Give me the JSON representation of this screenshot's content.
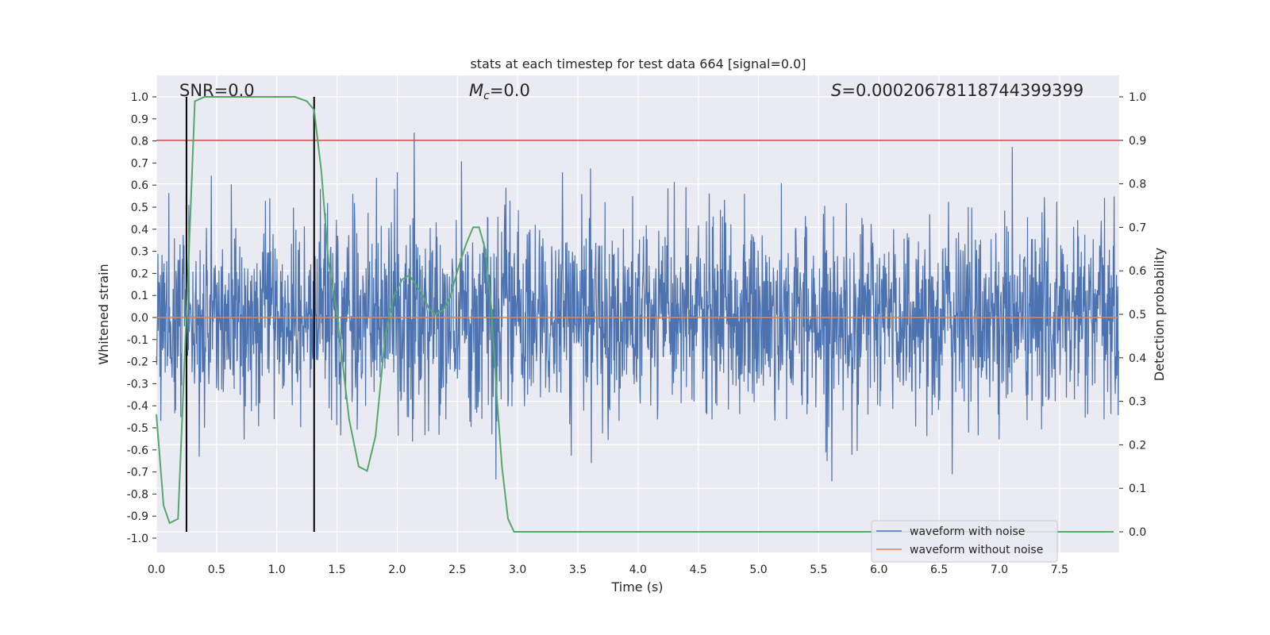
{
  "chart_data": {
    "type": "line",
    "title": "stats at each timestep for test data 664 [signal=0.0]",
    "xlabel": "Time (s)",
    "ylabel_left": "Whitened strain",
    "ylabel_right": "Detection probability",
    "xlim": [
      0.0,
      8.0
    ],
    "ylim_left": [
      -1.07,
      1.1
    ],
    "ylim_right": [
      -0.05,
      1.05
    ],
    "x_ticks": [
      "0.0",
      "0.5",
      "1.0",
      "1.5",
      "2.0",
      "2.5",
      "3.0",
      "3.5",
      "4.0",
      "4.5",
      "5.0",
      "5.5",
      "6.0",
      "6.5",
      "7.0",
      "7.5"
    ],
    "y_ticks_left": [
      "1.0",
      "0.9",
      "0.8",
      "0.7",
      "0.6",
      "0.5",
      "0.4",
      "0.3",
      "0.2",
      "0.1",
      "0.0",
      "-0.1",
      "-0.2",
      "-0.3",
      "-0.4",
      "-0.5",
      "-0.6",
      "-0.7",
      "-0.8",
      "-0.9",
      "-1.0"
    ],
    "y_ticks_right": [
      "1.0",
      "0.9",
      "0.8",
      "0.7",
      "0.6",
      "0.5",
      "0.4",
      "0.3",
      "0.2",
      "0.1",
      "0.0"
    ],
    "grid": true,
    "legend_position": "lower-right",
    "annotations": {
      "snr": "SNR=0.0",
      "mc_symbol": "M",
      "mc_sub": "c",
      "mc_value": "=0.0",
      "s_symbol": "S",
      "s_value": "=0.00020678118744399399"
    },
    "threshold_line": {
      "axis": "right",
      "y": 0.9,
      "color": "#c44e52"
    },
    "vertical_markers": {
      "x": [
        0.25,
        1.31
      ],
      "color": "#000000"
    },
    "series": [
      {
        "name": "waveform with noise",
        "axis": "left",
        "color": "#4c72b0",
        "style": "dense noise, approx. amplitude ±0.4 with excursions to ±1.0"
      },
      {
        "name": "waveform without noise",
        "axis": "left",
        "color": "#dd8452",
        "constant_value": 0.0
      },
      {
        "name": "detection probability",
        "axis": "right",
        "color": "#55a868",
        "x": [
          0.0,
          0.06,
          0.11,
          0.18,
          0.25,
          0.32,
          0.4,
          0.6,
          0.8,
          1.0,
          1.15,
          1.25,
          1.31,
          1.37,
          1.43,
          1.5,
          1.6,
          1.68,
          1.75,
          1.82,
          1.9,
          1.97,
          2.04,
          2.1,
          2.15,
          2.2,
          2.27,
          2.32,
          2.38,
          2.44,
          2.5,
          2.57,
          2.63,
          2.68,
          2.73,
          2.78,
          2.83,
          2.87,
          2.92,
          2.97,
          3.05,
          3.5,
          4.0,
          5.0,
          6.0,
          7.0,
          7.95
        ],
        "values": [
          0.27,
          0.06,
          0.02,
          0.03,
          0.5,
          0.99,
          1.0,
          1.0,
          1.0,
          1.0,
          1.0,
          0.99,
          0.97,
          0.83,
          0.62,
          0.5,
          0.26,
          0.15,
          0.14,
          0.22,
          0.45,
          0.54,
          0.58,
          0.59,
          0.57,
          0.55,
          0.51,
          0.5,
          0.51,
          0.54,
          0.6,
          0.66,
          0.7,
          0.7,
          0.65,
          0.52,
          0.3,
          0.15,
          0.03,
          0.0,
          0.0,
          0.0,
          0.0,
          0.0,
          0.0,
          0.0,
          0.0
        ]
      }
    ]
  }
}
